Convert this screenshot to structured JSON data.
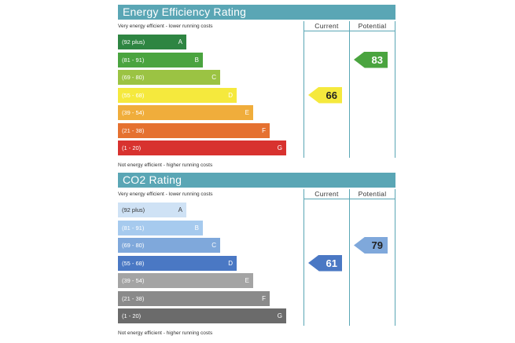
{
  "energy": {
    "title": "Energy Efficiency Rating",
    "top_caption": "Very energy efficient - lower running costs",
    "bottom_caption": "Not energy efficient - higher running costs",
    "col_current": "Current",
    "col_potential": "Potential",
    "bands": [
      {
        "range": "(92 plus)",
        "letter": "A",
        "color": "#2e8542"
      },
      {
        "range": "(81 - 91)",
        "letter": "B",
        "color": "#4aa43f"
      },
      {
        "range": "(69 - 80)",
        "letter": "C",
        "color": "#9bc343"
      },
      {
        "range": "(55 - 68)",
        "letter": "D",
        "color": "#f5e93d"
      },
      {
        "range": "(39 - 54)",
        "letter": "E",
        "color": "#f0ad3b"
      },
      {
        "range": "(21 - 38)",
        "letter": "F",
        "color": "#e57130"
      },
      {
        "range": "(1 - 20)",
        "letter": "G",
        "color": "#d8322f"
      }
    ],
    "current": {
      "value": "66",
      "band": "D",
      "color": "#f5e93d"
    },
    "potential": {
      "value": "83",
      "band": "B",
      "color": "#4aa43f"
    }
  },
  "co2": {
    "title": "CO2 Rating",
    "top_caption": "Very energy efficient - lower running costs",
    "bottom_caption": "Not energy efficient - higher running costs",
    "col_current": "Current",
    "col_potential": "Potential",
    "bands": [
      {
        "range": "(92 plus)",
        "letter": "A",
        "color": "#cfe2f5"
      },
      {
        "range": "(81 - 91)",
        "letter": "B",
        "color": "#a6caee"
      },
      {
        "range": "(69 - 80)",
        "letter": "C",
        "color": "#7fa8db"
      },
      {
        "range": "(55 - 68)",
        "letter": "D",
        "color": "#4a78c4"
      },
      {
        "range": "(39 - 54)",
        "letter": "E",
        "color": "#a4a4a4"
      },
      {
        "range": "(21 - 38)",
        "letter": "F",
        "color": "#8a8a8a"
      },
      {
        "range": "(1 - 20)",
        "letter": "G",
        "color": "#6b6b6b"
      }
    ],
    "current": {
      "value": "61",
      "band": "D",
      "color": "#4a78c4"
    },
    "potential": {
      "value": "79",
      "band": "C",
      "color": "#7fa8db"
    }
  }
}
